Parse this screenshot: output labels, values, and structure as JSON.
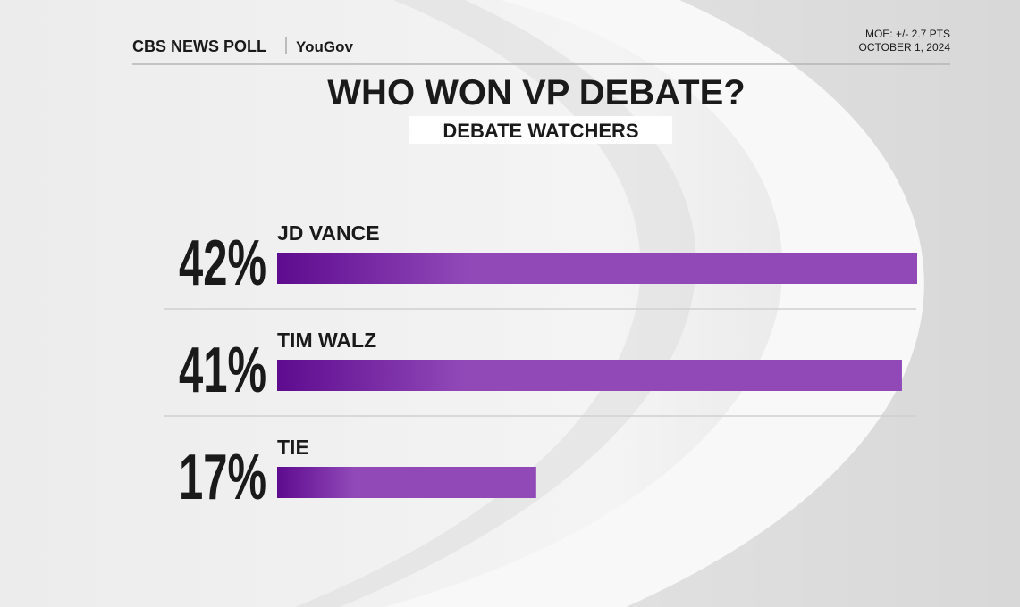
{
  "chart_data": {
    "type": "bar",
    "orientation": "horizontal",
    "brand": "CBS NEWS POLL",
    "partner": "YouGov",
    "moe": "MOE: +/- 2.7 PTS",
    "date": "OCTOBER 1, 2024",
    "title": "WHO WON VP DEBATE?",
    "subtitle": "DEBATE WATCHERS",
    "categories": [
      "JD VANCE",
      "TIM WALZ",
      "TIE"
    ],
    "values": [
      42,
      41,
      17
    ],
    "value_labels": [
      "42%",
      "41%",
      "17%"
    ],
    "color": "#9149b8"
  }
}
